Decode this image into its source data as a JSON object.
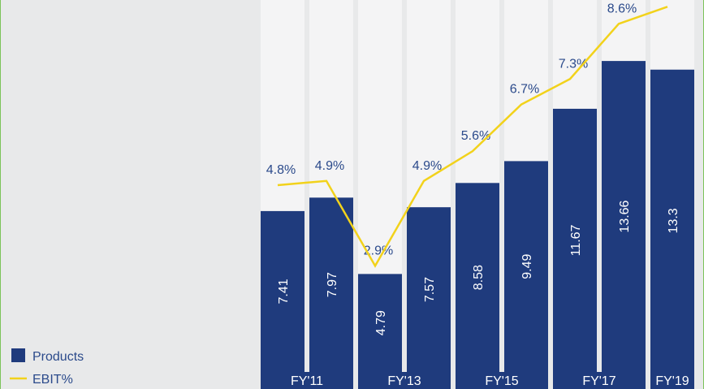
{
  "chart_data": {
    "type": "bar",
    "categories": [
      "FY'11",
      null,
      "FY'13",
      null,
      "FY'15",
      null,
      "FY'17",
      null,
      "FY'19"
    ],
    "ylim": [
      0,
      16.2
    ],
    "y2lim": [
      0,
      9.16
    ],
    "legend": "bottom-left",
    "series": [
      {
        "name": "Products",
        "type": "bar",
        "color": "#1f3b7d",
        "values": [
          7.41,
          7.97,
          4.79,
          7.57,
          8.58,
          9.49,
          11.67,
          13.66,
          13.3
        ]
      },
      {
        "name": "EBIT%",
        "type": "line",
        "axis": "y2",
        "color": "#f2d21b",
        "values": [
          4.8,
          4.9,
          2.9,
          4.9,
          5.6,
          6.7,
          7.3,
          8.6,
          9.0
        ],
        "value_labels": [
          "4.8%",
          "4.9%",
          "2.9%",
          "4.9%",
          "5.6%",
          "6.7%",
          "7.3%",
          "8.6%",
          null
        ]
      }
    ]
  }
}
